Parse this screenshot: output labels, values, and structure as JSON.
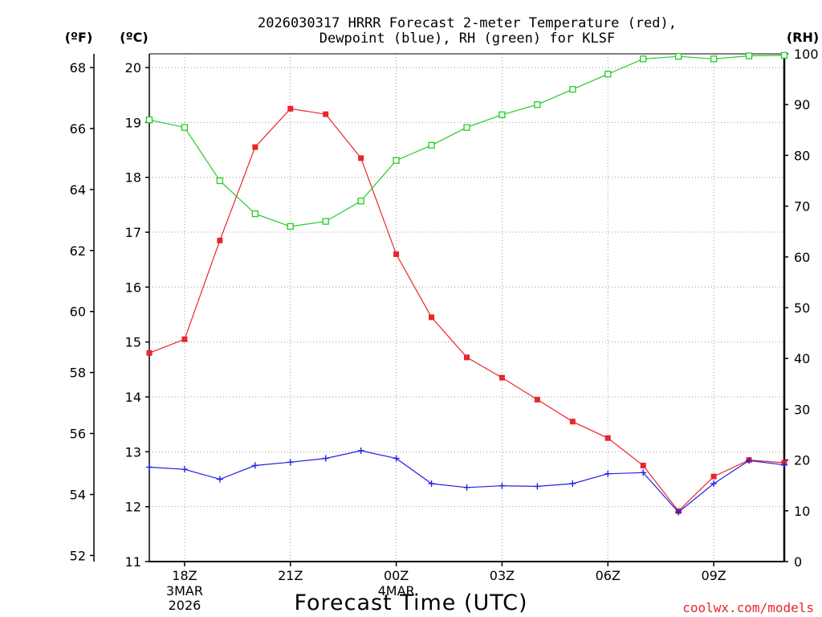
{
  "chart_data": {
    "type": "line",
    "title_line1": "2026030317 HRRR Forecast 2-meter Temperature (red),",
    "title_line2": "Dewpoint (blue), RH (green) for KLSF",
    "axis_units": {
      "fahrenheit": "(ºF)",
      "celsius": "(ºC)",
      "rh": "(RH)"
    },
    "xlabel": "Forecast Time (UTC)",
    "credit": "coolwx.com/models",
    "x_hours": [
      17,
      18,
      19,
      20,
      21,
      22,
      23,
      24,
      25,
      26,
      27,
      28,
      29,
      30,
      31,
      32,
      33,
      34,
      35
    ],
    "x_range": [
      17,
      35
    ],
    "x_ticks": [
      {
        "hour": 18,
        "label": "18Z",
        "sub1": "3MAR",
        "sub2": "2026"
      },
      {
        "hour": 21,
        "label": "21Z",
        "sub1": "",
        "sub2": ""
      },
      {
        "hour": 24,
        "label": "00Z",
        "sub1": "4MAR",
        "sub2": ""
      },
      {
        "hour": 27,
        "label": "03Z",
        "sub1": "",
        "sub2": ""
      },
      {
        "hour": 30,
        "label": "06Z",
        "sub1": "",
        "sub2": ""
      },
      {
        "hour": 33,
        "label": "09Z",
        "sub1": "",
        "sub2": ""
      }
    ],
    "y_celsius": {
      "range": [
        11,
        20.25
      ],
      "ticks": [
        11,
        12,
        13,
        14,
        15,
        16,
        17,
        18,
        19,
        20
      ]
    },
    "y_fahrenheit": {
      "ticks": [
        52,
        54,
        56,
        58,
        60,
        62,
        64,
        66,
        68
      ]
    },
    "y_rh": {
      "range": [
        0,
        100
      ],
      "ticks": [
        0,
        10,
        20,
        30,
        40,
        50,
        60,
        70,
        80,
        90,
        100
      ]
    },
    "series": [
      {
        "name": "Temperature",
        "unit": "C",
        "color": "#e8262b",
        "marker": "filled-square",
        "values": [
          14.8,
          15.05,
          16.85,
          18.55,
          19.25,
          19.15,
          18.35,
          16.6,
          15.45,
          14.72,
          14.35,
          13.95,
          13.55,
          13.25,
          12.75,
          11.92,
          12.55,
          12.85,
          12.8
        ]
      },
      {
        "name": "Dewpoint",
        "unit": "C",
        "color": "#2020e6",
        "marker": "plus",
        "values": [
          12.72,
          12.68,
          12.5,
          12.75,
          12.81,
          12.88,
          13.02,
          12.88,
          12.42,
          12.35,
          12.38,
          12.37,
          12.42,
          12.6,
          12.62,
          11.9,
          12.42,
          12.84,
          12.76
        ]
      },
      {
        "name": "RH",
        "unit": "%",
        "color": "#22cc22",
        "marker": "open-square",
        "values": [
          87,
          85.5,
          75,
          68.5,
          66,
          67,
          71,
          79,
          82,
          85.5,
          88,
          90,
          93,
          96,
          99,
          99.5,
          99,
          99.6,
          99.7
        ]
      }
    ]
  }
}
